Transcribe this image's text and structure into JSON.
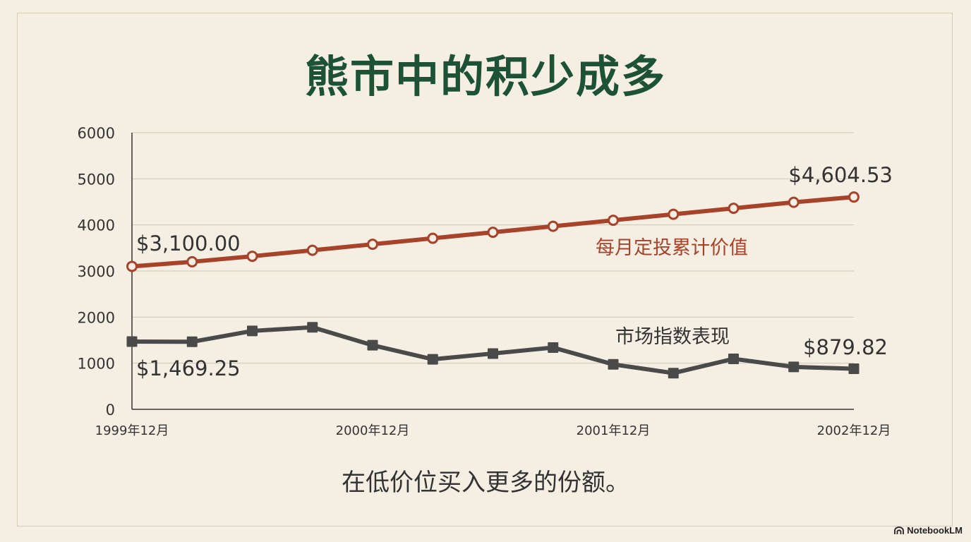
{
  "title": "熊市中的积少成多",
  "caption": "在低价位买入更多的份额。",
  "brand": "NotebookLM",
  "chart_data": {
    "type": "line",
    "ylim": [
      0,
      6000
    ],
    "yticks": [
      "0",
      "1000",
      "2000",
      "3000",
      "4000",
      "5000",
      "6000"
    ],
    "xtick_labels": [
      {
        "index": 0,
        "label": "1999年12月"
      },
      {
        "index": 4,
        "label": "2000年12月"
      },
      {
        "index": 8,
        "label": "2001年12月"
      },
      {
        "index": 12,
        "label": "2002年12月"
      }
    ],
    "grid": true,
    "series": [
      {
        "name": "每月定投累计价值",
        "color": "#a8432b",
        "marker": "circle",
        "values": [
          3100.0,
          3200,
          3320,
          3450,
          3580,
          3710,
          3840,
          3970,
          4100,
          4230,
          4360,
          4490,
          4604.53
        ],
        "start_label": "$3,100.00",
        "end_label": "$4,604.53"
      },
      {
        "name": "市场指数表现",
        "color": "#4a4a4a",
        "marker": "square",
        "values": [
          1469.25,
          1465,
          1700,
          1780,
          1390,
          1085,
          1210,
          1340,
          975,
          785,
          1095,
          920,
          879.82
        ],
        "start_label": "$1,469.25",
        "end_label": "$879.82"
      }
    ]
  }
}
